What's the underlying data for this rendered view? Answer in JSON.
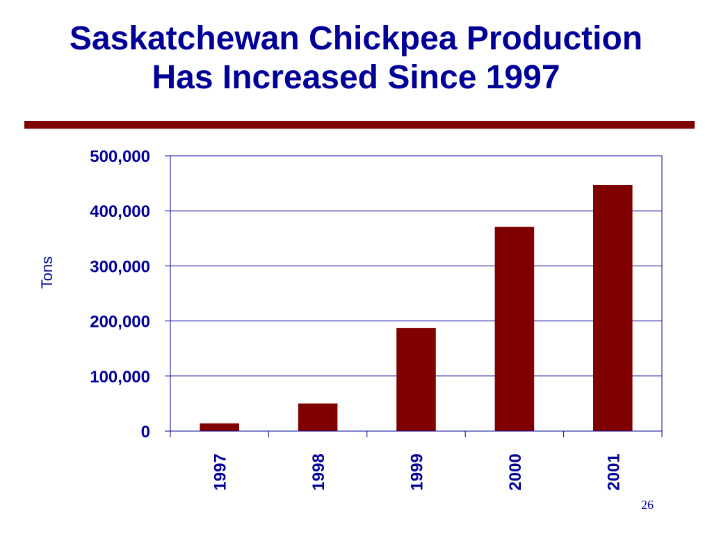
{
  "slide": {
    "title_line1": "Saskatchewan Chickpea Production",
    "title_line2": "Has Increased Since 1997",
    "page_number": "26"
  },
  "colors": {
    "title_text": "#000099",
    "accent_rule": "#800000",
    "bar_fill": "#800000",
    "axis": "#000099",
    "gridline": "#000099"
  },
  "chart_data": {
    "type": "bar",
    "title": "",
    "xlabel": "",
    "ylabel": "Tons",
    "categories": [
      "1997",
      "1998",
      "1999",
      "2000",
      "2001"
    ],
    "values": [
      14000,
      50000,
      187000,
      371000,
      447000
    ],
    "ylim": [
      0,
      500000
    ],
    "yticks": [
      0,
      100000,
      200000,
      300000,
      400000,
      500000
    ],
    "ytick_labels": [
      "0",
      "100,000",
      "200,000",
      "300,000",
      "400,000",
      "500,000"
    ],
    "grid": true,
    "legend": "none"
  }
}
